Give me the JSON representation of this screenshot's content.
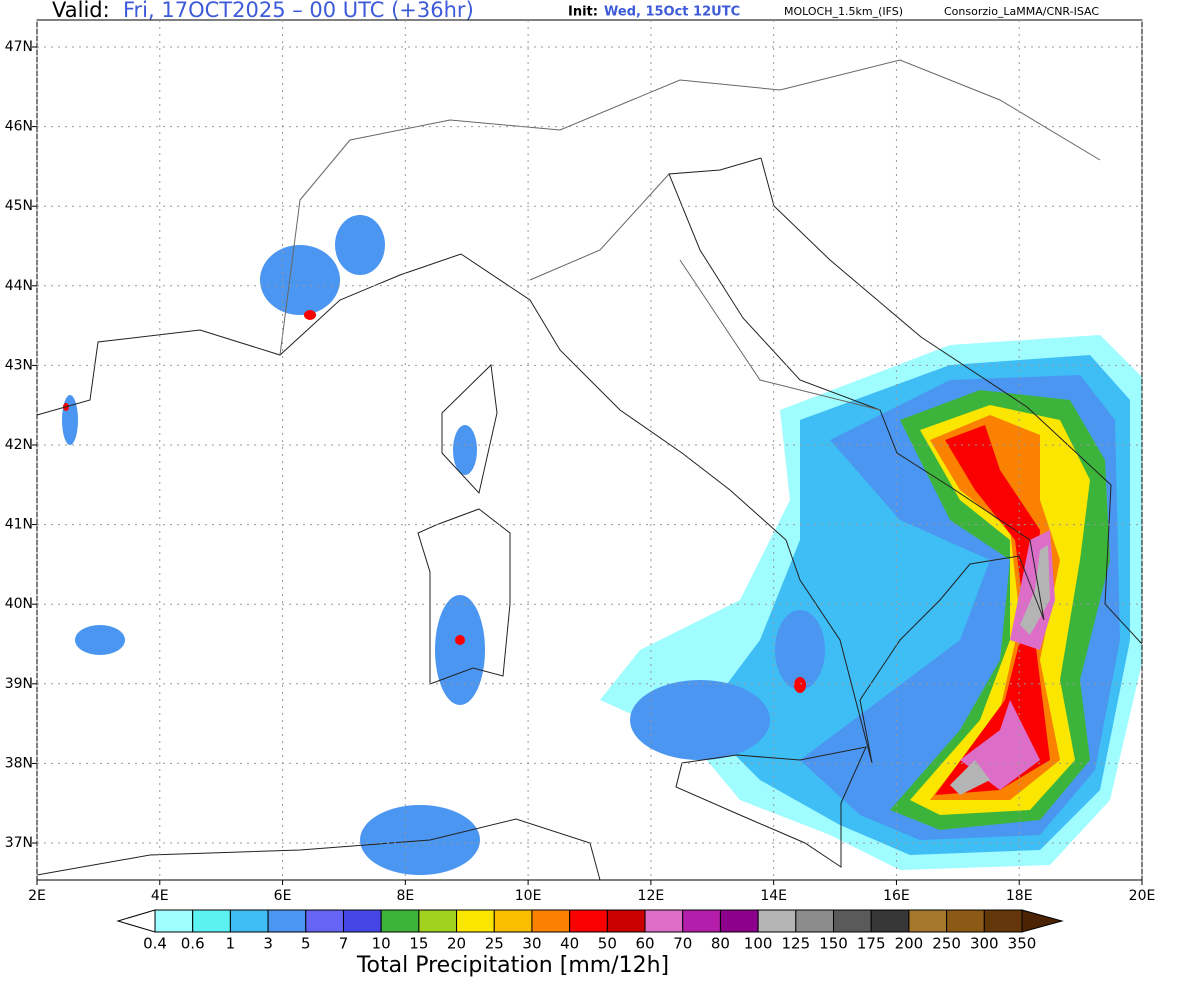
{
  "header": {
    "valid_label": "Valid:",
    "valid_time": "Fri, 17OCT2025 – 00 UTC (+36hr)",
    "init_label": "Init:",
    "init_time": "Wed, 15Oct 12UTC",
    "model": "MOLOCH_1.5km_(IFS)",
    "source": "Consorzio_LaMMA/CNR-ISAC"
  },
  "map": {
    "lon_ticks": [
      {
        "value": 2,
        "label": "2E"
      },
      {
        "value": 4,
        "label": "4E"
      },
      {
        "value": 6,
        "label": "6E"
      },
      {
        "value": 8,
        "label": "8E"
      },
      {
        "value": 10,
        "label": "10E"
      },
      {
        "value": 12,
        "label": "12E"
      },
      {
        "value": 14,
        "label": "14E"
      },
      {
        "value": 16,
        "label": "16E"
      },
      {
        "value": 18,
        "label": "18E"
      },
      {
        "value": 20,
        "label": "20E"
      }
    ],
    "lat_ticks": [
      {
        "value": 37,
        "label": "37N"
      },
      {
        "value": 38,
        "label": "38N"
      },
      {
        "value": 39,
        "label": "39N"
      },
      {
        "value": 40,
        "label": "40N"
      },
      {
        "value": 41,
        "label": "41N"
      },
      {
        "value": 42,
        "label": "42N"
      },
      {
        "value": 43,
        "label": "43N"
      },
      {
        "value": 44,
        "label": "44N"
      },
      {
        "value": 45,
        "label": "45N"
      },
      {
        "value": 46,
        "label": "46N"
      },
      {
        "value": 47,
        "label": "47N"
      }
    ],
    "grid": true
  },
  "colorbar": {
    "title": "Total Precipitation [mm/12h]",
    "levels": [
      {
        "value": 0.4,
        "label": "0.4"
      },
      {
        "value": 0.6,
        "label": "0.6"
      },
      1,
      3,
      5,
      7,
      10,
      15,
      20,
      25,
      30,
      40,
      50,
      60,
      70,
      80,
      100,
      125,
      150,
      175,
      200,
      250,
      300,
      350
    ],
    "colors": [
      "#ffffff",
      "#9ffcff",
      "#5df2f2",
      "#3fbdf5",
      "#4b96f0",
      "#6464f5",
      "#4646e6",
      "#3cb43c",
      "#a0d21e",
      "#fae600",
      "#fabe00",
      "#fa8200",
      "#fa0000",
      "#c80000",
      "#dc6ec8",
      "#b41eaa",
      "#8c008c",
      "#b4b4b4",
      "#8c8c8c",
      "#5a5a5a",
      "#373737",
      "#a5782d",
      "#8c5a14",
      "#64370a",
      "#4b2305"
    ]
  }
}
